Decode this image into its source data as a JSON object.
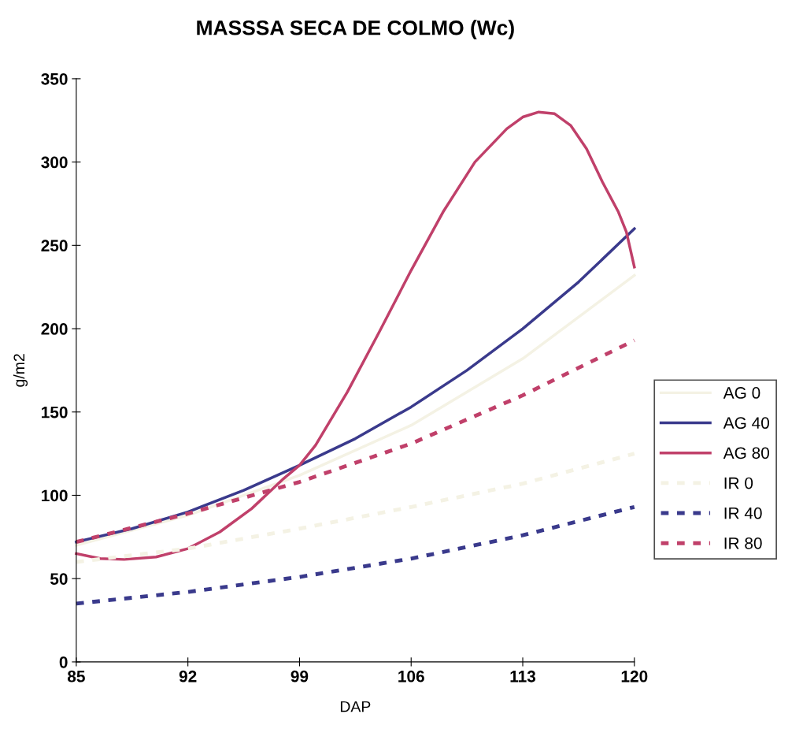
{
  "chart_data": {
    "type": "line",
    "title": "MASSSA SECA DE COLMO (Wc)",
    "xlabel": "DAP",
    "ylabel": "g/m2",
    "xlim": [
      85,
      120
    ],
    "xticks": [
      85,
      92,
      99,
      106,
      113,
      120
    ],
    "ylim": [
      0,
      350
    ],
    "yticks": [
      0,
      50,
      100,
      150,
      200,
      250,
      300,
      350
    ],
    "grid": false,
    "legend": "right",
    "marker": "none",
    "series": [
      {
        "name": "AG 0",
        "color": "#f4f2e4",
        "line_style": "solid",
        "x": [
          85,
          92,
          99,
          106,
          113,
          120
        ],
        "values": [
          70,
          88,
          112,
          142,
          182,
          232
        ]
      },
      {
        "name": "AG 40",
        "color": "#3a3a8c",
        "line_style": "solid",
        "x": [
          85,
          88.5,
          92,
          95.5,
          99,
          102.5,
          106,
          109.5,
          113,
          116.5,
          120
        ],
        "values": [
          72,
          80,
          90,
          103,
          118,
          134,
          153,
          175,
          200,
          228,
          260
        ]
      },
      {
        "name": "AG 80",
        "color": "#c0406a",
        "line_style": "solid",
        "x": [
          85,
          86.5,
          88,
          90,
          92,
          94,
          96,
          98,
          99,
          100,
          102,
          104,
          106,
          108,
          110,
          112,
          113,
          114,
          115,
          116,
          117,
          118,
          119,
          119.5,
          120
        ],
        "values": [
          65,
          62,
          61.5,
          63,
          68,
          78,
          92,
          110,
          118,
          130,
          162,
          198,
          235,
          270,
          300,
          320,
          327,
          330,
          329,
          322,
          308,
          288,
          270,
          258,
          237
        ]
      },
      {
        "name": "IR 0",
        "color": "#f4f2e4",
        "line_style": "dashed",
        "x": [
          85,
          92,
          99,
          106,
          113,
          120
        ],
        "values": [
          60,
          68,
          80,
          93,
          107,
          125
        ]
      },
      {
        "name": "IR 40",
        "color": "#3a3a8c",
        "line_style": "dashed",
        "x": [
          85,
          92,
          99,
          106,
          113,
          120
        ],
        "values": [
          35,
          42,
          51,
          62,
          76,
          93
        ]
      },
      {
        "name": "IR 80",
        "color": "#c0406a",
        "line_style": "dashed",
        "x": [
          85,
          92,
          99,
          106,
          113,
          120
        ],
        "values": [
          72,
          89,
          108,
          131,
          160,
          193
        ]
      }
    ]
  }
}
